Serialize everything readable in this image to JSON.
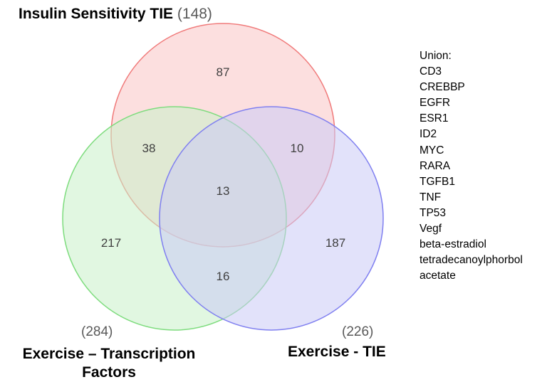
{
  "sets": {
    "insulin": {
      "title": "Insulin Sensitivity TIE",
      "count": "(148)",
      "color": "#f07a7a",
      "fill": "#f9c4c4"
    },
    "transcription": {
      "title_line1": "Exercise – Transcription",
      "title_line2": "Factors",
      "count": "(284)",
      "color": "#7ddc7d",
      "fill": "#c8f0c8"
    },
    "exercise_tie": {
      "title": "Exercise - TIE",
      "count": "(226)",
      "color": "#7f7ff0",
      "fill": "#cacaf6"
    }
  },
  "regions": {
    "insulin_only": "87",
    "insulin_transcription": "38",
    "insulin_exercise_tie": "10",
    "all_three": "13",
    "transcription_only": "217",
    "exercise_tie_only": "187",
    "transcription_exercise_tie": "16"
  },
  "union": {
    "heading": "Union:",
    "items": [
      "CD3",
      "CREBBP",
      "EGFR",
      "ESR1",
      "ID2",
      "MYC",
      "RARA",
      "TGFB1",
      "TNF",
      "TP53",
      "Vegf",
      "beta-estradiol",
      "tetradecanoylphorbol",
      "acetate"
    ]
  }
}
